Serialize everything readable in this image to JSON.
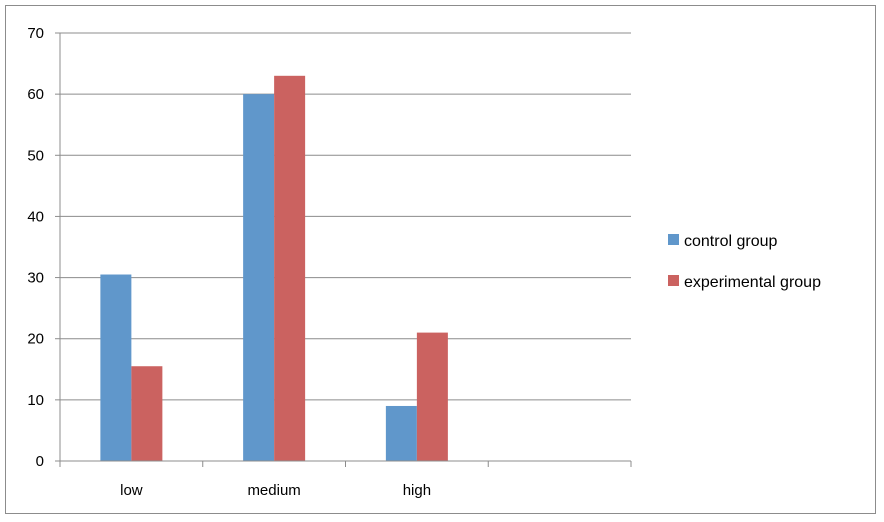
{
  "chart_data": {
    "type": "bar",
    "categories": [
      "low",
      "medium",
      "high",
      ""
    ],
    "series": [
      {
        "name": "control group",
        "values": [
          30.5,
          60,
          9,
          null
        ],
        "color": "#6097CB"
      },
      {
        "name": "experimental group",
        "values": [
          15.5,
          63,
          21,
          null
        ],
        "color": "#CB6260"
      }
    ],
    "ylim": [
      0,
      70
    ],
    "yticks": [
      0,
      10,
      20,
      30,
      40,
      50,
      60,
      70
    ],
    "grid": true,
    "legend": "right",
    "title": "",
    "xlabel": "",
    "ylabel": ""
  }
}
